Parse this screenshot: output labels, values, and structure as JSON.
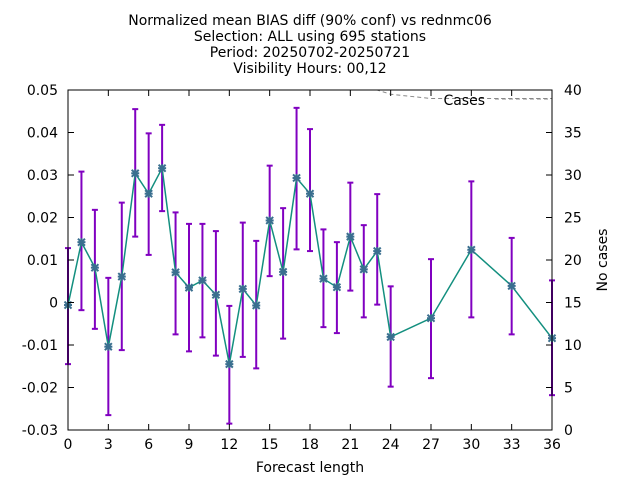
{
  "chart_data": {
    "type": "line",
    "title_lines": [
      "Normalized mean BIAS diff (90% conf) vs rednmc06",
      "Selection: ALL using   695 stations",
      "Period: 20250702-20250721",
      "Visibility   Hours: 00,12"
    ],
    "xlabel": "Forecast length",
    "ylabel": "",
    "y2label": "No cases",
    "xlim": [
      0,
      36
    ],
    "ylim": [
      -0.03,
      0.05
    ],
    "y2lim": [
      0,
      40
    ],
    "x_ticks": [
      0,
      3,
      6,
      9,
      12,
      15,
      18,
      21,
      24,
      27,
      30,
      33,
      36
    ],
    "y_ticks": [
      -0.03,
      -0.02,
      -0.01,
      0,
      0.01,
      0.02,
      0.03,
      0.04,
      0.05
    ],
    "y_tick_labels": [
      "-0.03",
      "-0.02",
      "-0.01",
      "0",
      "0.01",
      "0.02",
      "0.03",
      "0.04",
      "0.05"
    ],
    "y2_ticks": [
      0,
      5,
      10,
      15,
      20,
      25,
      30,
      35,
      40
    ],
    "grid": false,
    "legend_position": "top-right",
    "series": [
      {
        "name": "",
        "color": "#138f7f",
        "marker_color": "#3a6f8f",
        "errorbar_color": "#8000c0",
        "x": [
          0,
          1,
          2,
          3,
          4,
          5,
          6,
          7,
          8,
          9,
          10,
          11,
          12,
          13,
          14,
          15,
          16,
          17,
          18,
          19,
          20,
          21,
          22,
          23,
          24,
          27,
          30,
          33,
          36
        ],
        "y": [
          -0.0006,
          0.0142,
          0.0082,
          -0.0104,
          0.0061,
          0.0304,
          0.0256,
          0.0316,
          0.0071,
          0.0035,
          0.0052,
          0.0018,
          -0.0145,
          0.0032,
          -0.0007,
          0.0193,
          0.0072,
          0.0293,
          0.0256,
          0.0056,
          0.0036,
          0.0155,
          0.0078,
          0.0121,
          -0.0081,
          -0.0037,
          0.0124,
          0.0039,
          -0.0084
        ],
        "err_low": [
          -0.0145,
          -0.0018,
          -0.0062,
          -0.0265,
          -0.0112,
          0.0155,
          0.0112,
          0.0215,
          -0.0075,
          -0.0115,
          -0.0082,
          -0.0125,
          -0.0285,
          -0.0128,
          -0.0155,
          0.0062,
          -0.0085,
          0.0125,
          0.0121,
          -0.0058,
          -0.0072,
          0.0028,
          -0.0035,
          -0.0005,
          -0.0198,
          -0.0178,
          -0.0035,
          -0.0075,
          -0.0218
        ],
        "err_high": [
          0.0128,
          0.0308,
          0.0218,
          0.0058,
          0.0235,
          0.0455,
          0.0398,
          0.0418,
          0.0212,
          0.0185,
          0.0185,
          0.0168,
          -0.0008,
          0.0188,
          0.0145,
          0.0322,
          0.0222,
          0.0458,
          0.0408,
          0.0172,
          0.0142,
          0.0282,
          0.0182,
          0.0255,
          0.0038,
          0.0102,
          0.0285,
          0.0152,
          0.0052
        ]
      }
    ],
    "cases_series": {
      "name": "Cases",
      "color": "#888888",
      "style": "dashed",
      "axis": "y2",
      "x": [
        0,
        1,
        2,
        3,
        4,
        5,
        6,
        7,
        8,
        9,
        10,
        11,
        12,
        13,
        14,
        15,
        16,
        17,
        18,
        19,
        20,
        21,
        22,
        23,
        24,
        27,
        30,
        33,
        36
      ],
      "y": [
        40,
        40,
        40,
        40,
        40,
        40,
        40,
        40,
        40,
        40,
        40,
        40,
        40,
        40,
        40,
        40,
        40,
        40,
        40,
        40,
        40,
        40,
        40,
        40,
        39.5,
        39,
        39,
        39,
        39
      ]
    }
  }
}
